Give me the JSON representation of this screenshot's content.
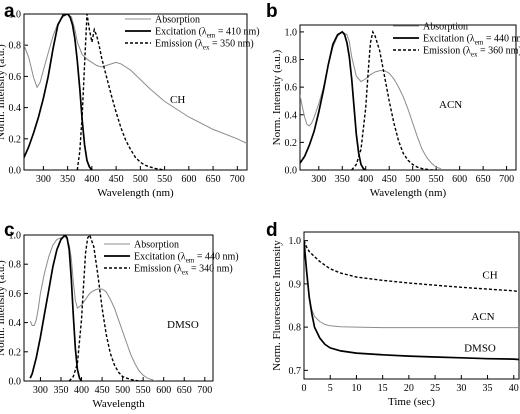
{
  "chart_data": [
    {
      "type": "line",
      "panel": "a",
      "xlabel": "Wavelength (nm)",
      "ylabel": "Norm. Intensity (a.u.)",
      "xlim": [
        260,
        720
      ],
      "ylim": [
        0,
        1.0
      ],
      "xticks": [
        300,
        350,
        400,
        450,
        500,
        550,
        600,
        650,
        700
      ],
      "yticks": [
        0.0,
        0.2,
        0.4,
        0.6,
        0.8,
        1.0
      ],
      "legend_position": "top-right",
      "annotation": "CH",
      "series": [
        {
          "name": "Absorption",
          "color": "#8c8c8c",
          "dash": "solid",
          "x": [
            260,
            270,
            280,
            287,
            293,
            300,
            310,
            320,
            330,
            340,
            350,
            358,
            365,
            370,
            380,
            390,
            400,
            410,
            420,
            430,
            440,
            450,
            460,
            480,
            500,
            520,
            550,
            600,
            650,
            700,
            720
          ],
          "y": [
            0.8,
            0.72,
            0.59,
            0.53,
            0.56,
            0.64,
            0.75,
            0.86,
            0.94,
            0.98,
            1.0,
            0.98,
            0.9,
            0.82,
            0.74,
            0.71,
            0.69,
            0.67,
            0.66,
            0.67,
            0.68,
            0.69,
            0.68,
            0.64,
            0.58,
            0.52,
            0.44,
            0.34,
            0.26,
            0.2,
            0.17
          ]
        },
        {
          "name": "Excitation",
          "color": "#000000",
          "dash": "solid",
          "x": [
            260,
            270,
            280,
            290,
            300,
            310,
            320,
            330,
            340,
            350,
            355,
            360,
            365,
            370,
            375,
            380,
            385,
            390,
            395,
            400
          ],
          "y": [
            0.08,
            0.15,
            0.24,
            0.34,
            0.46,
            0.6,
            0.78,
            0.93,
            0.99,
            1.0,
            0.98,
            0.93,
            0.84,
            0.7,
            0.52,
            0.32,
            0.16,
            0.06,
            0.02,
            0.0
          ]
        },
        {
          "name": "Emission",
          "color": "#000000",
          "dash": "dashed",
          "x": [
            370,
            375,
            380,
            385,
            390,
            395,
            400,
            405,
            410,
            415,
            420,
            430,
            440,
            450,
            460,
            470,
            480,
            490,
            500,
            510,
            520,
            530,
            540,
            550
          ],
          "y": [
            0.0,
            0.12,
            0.35,
            0.68,
            1.0,
            0.9,
            0.82,
            0.9,
            0.86,
            0.8,
            0.72,
            0.6,
            0.48,
            0.37,
            0.27,
            0.19,
            0.13,
            0.08,
            0.05,
            0.03,
            0.02,
            0.01,
            0.005,
            0.0
          ]
        }
      ]
    },
    {
      "type": "line",
      "panel": "b",
      "xlabel": "Wavelength (nm)",
      "ylabel": "Norm. Intensity (a.u.)",
      "xlim": [
        260,
        720
      ],
      "ylim": [
        0,
        1.05
      ],
      "xticks": [
        300,
        350,
        400,
        450,
        500,
        550,
        600,
        650,
        700
      ],
      "yticks": [
        0.0,
        0.2,
        0.4,
        0.6,
        0.8,
        1.0
      ],
      "legend_position": "top-right",
      "annotation": "ACN",
      "series": [
        {
          "name": "Absorption",
          "color": "#8c8c8c",
          "dash": "solid",
          "x": [
            260,
            265,
            270,
            275,
            280,
            285,
            290,
            300,
            310,
            320,
            330,
            340,
            350,
            360,
            365,
            370,
            380,
            390,
            400,
            410,
            420,
            430,
            440,
            450,
            460,
            470,
            480,
            490,
            500,
            510,
            520,
            530,
            540,
            550,
            560
          ],
          "y": [
            0.54,
            0.46,
            0.38,
            0.33,
            0.32,
            0.34,
            0.38,
            0.48,
            0.6,
            0.76,
            0.89,
            0.97,
            1.0,
            0.98,
            0.93,
            0.82,
            0.68,
            0.64,
            0.66,
            0.69,
            0.71,
            0.72,
            0.72,
            0.7,
            0.66,
            0.6,
            0.53,
            0.44,
            0.34,
            0.24,
            0.15,
            0.09,
            0.05,
            0.02,
            0.01
          ]
        },
        {
          "name": "Excitation",
          "color": "#000000",
          "dash": "solid",
          "x": [
            260,
            270,
            280,
            290,
            300,
            310,
            320,
            330,
            340,
            350,
            355,
            360,
            365,
            370,
            375,
            380,
            385,
            390,
            395,
            400
          ],
          "y": [
            0.05,
            0.1,
            0.18,
            0.28,
            0.42,
            0.58,
            0.76,
            0.91,
            0.98,
            1.0,
            0.98,
            0.92,
            0.82,
            0.66,
            0.46,
            0.26,
            0.12,
            0.04,
            0.01,
            0.0
          ]
        },
        {
          "name": "Emission",
          "color": "#000000",
          "dash": "dashed",
          "x": [
            370,
            380,
            390,
            400,
            405,
            410,
            415,
            420,
            430,
            440,
            450,
            460,
            470,
            480,
            490,
            500,
            510,
            520,
            530,
            540,
            550
          ],
          "y": [
            0.0,
            0.04,
            0.15,
            0.45,
            0.7,
            0.92,
            1.0,
            0.97,
            0.86,
            0.68,
            0.5,
            0.34,
            0.21,
            0.12,
            0.07,
            0.04,
            0.02,
            0.01,
            0.005,
            0.0,
            0.0
          ]
        }
      ]
    },
    {
      "type": "line",
      "panel": "c",
      "xlabel": "Wavelength",
      "ylabel": "Norm. Intensity (a.u.)",
      "xlim": [
        260,
        720
      ],
      "ylim": [
        0,
        1.0
      ],
      "xticks": [
        300,
        350,
        400,
        450,
        500,
        550,
        600,
        650,
        700
      ],
      "yticks": [
        0.0,
        0.2,
        0.4,
        0.6,
        0.8,
        1.0
      ],
      "legend_position": "top-right",
      "annotation": "DMSO",
      "series": [
        {
          "name": "Absorption",
          "color": "#8c8c8c",
          "dash": "solid",
          "x": [
            275,
            280,
            285,
            290,
            295,
            300,
            310,
            320,
            330,
            340,
            350,
            360,
            365,
            370,
            375,
            380,
            385,
            390,
            400,
            410,
            420,
            430,
            440,
            450,
            460,
            470,
            480,
            490,
            500,
            510,
            520,
            530,
            540,
            550,
            560,
            570,
            580
          ],
          "y": [
            0.41,
            0.38,
            0.38,
            0.42,
            0.5,
            0.6,
            0.74,
            0.85,
            0.93,
            0.97,
            0.98,
            0.99,
            0.97,
            0.93,
            0.84,
            0.68,
            0.55,
            0.5,
            0.52,
            0.56,
            0.6,
            0.62,
            0.63,
            0.63,
            0.61,
            0.56,
            0.5,
            0.42,
            0.34,
            0.26,
            0.18,
            0.12,
            0.07,
            0.04,
            0.02,
            0.01,
            0.0
          ]
        },
        {
          "name": "Excitation",
          "color": "#000000",
          "dash": "solid",
          "x": [
            275,
            280,
            290,
            300,
            310,
            320,
            330,
            340,
            350,
            360,
            365,
            370,
            375,
            380,
            385,
            390,
            395,
            400
          ],
          "y": [
            0.02,
            0.05,
            0.16,
            0.3,
            0.46,
            0.62,
            0.78,
            0.9,
            0.97,
            1.0,
            0.98,
            0.9,
            0.7,
            0.45,
            0.22,
            0.08,
            0.02,
            0.0
          ]
        },
        {
          "name": "Emission",
          "color": "#000000",
          "dash": "dashed",
          "x": [
            370,
            380,
            390,
            400,
            405,
            410,
            415,
            420,
            430,
            440,
            450,
            460,
            470,
            480,
            490,
            500,
            510,
            520,
            530,
            540,
            550
          ],
          "y": [
            0.0,
            0.03,
            0.12,
            0.42,
            0.66,
            0.88,
            0.98,
            1.0,
            0.92,
            0.72,
            0.5,
            0.32,
            0.19,
            0.11,
            0.06,
            0.03,
            0.02,
            0.01,
            0.005,
            0.0,
            0.0
          ]
        }
      ]
    },
    {
      "type": "line",
      "panel": "d",
      "xlabel": "Time (sec)",
      "ylabel": "Norm. Fluorescence Intensity",
      "xlim": [
        0,
        41
      ],
      "ylim": [
        0.68,
        1.02
      ],
      "xticks": [
        0,
        5,
        10,
        15,
        20,
        25,
        30,
        35,
        40
      ],
      "yticks": [
        0.7,
        0.8,
        0.9,
        1.0
      ],
      "series": [
        {
          "name": "CH",
          "color": "#000000",
          "dash": "dashed",
          "x": [
            0,
            0.5,
            1,
            2,
            3,
            4,
            5,
            7,
            10,
            15,
            20,
            25,
            30,
            35,
            40,
            41
          ],
          "y": [
            1.0,
            0.985,
            0.975,
            0.963,
            0.952,
            0.943,
            0.935,
            0.925,
            0.916,
            0.908,
            0.902,
            0.897,
            0.892,
            0.888,
            0.884,
            0.882
          ]
        },
        {
          "name": "ACN",
          "color": "#8c8c8c",
          "dash": "solid",
          "x": [
            0,
            0.3,
            0.7,
            1,
            1.5,
            2,
            3,
            4,
            5,
            7,
            10,
            15,
            20,
            25,
            30,
            35,
            40,
            41
          ],
          "y": [
            1.0,
            0.95,
            0.9,
            0.87,
            0.84,
            0.825,
            0.813,
            0.806,
            0.803,
            0.801,
            0.8,
            0.799,
            0.799,
            0.799,
            0.799,
            0.799,
            0.799,
            0.799
          ]
        },
        {
          "name": "DMSO",
          "color": "#000000",
          "dash": "solid",
          "x": [
            0,
            0.5,
            1,
            1.5,
            2,
            3,
            4,
            5,
            7,
            10,
            15,
            20,
            25,
            30,
            35,
            40,
            41
          ],
          "y": [
            1.0,
            0.93,
            0.87,
            0.83,
            0.8,
            0.775,
            0.76,
            0.752,
            0.745,
            0.74,
            0.736,
            0.733,
            0.731,
            0.729,
            0.727,
            0.726,
            0.725
          ]
        }
      ]
    }
  ],
  "panels": {
    "a": {
      "label": "a",
      "legend": [
        {
          "text": "Absorption",
          "sub": "",
          "tail": ""
        },
        {
          "text": "Excitation (λ",
          "sub": "em",
          "tail": " = 410 nm)"
        },
        {
          "text": "Emission (λ",
          "sub": "ex",
          "tail": " = 350 nm)"
        }
      ]
    },
    "b": {
      "label": "b",
      "legend": [
        {
          "text": "Absorption",
          "sub": "",
          "tail": ""
        },
        {
          "text": "Excitation (λ",
          "sub": "em",
          "tail": " = 440 nm)"
        },
        {
          "text": "Emission (λ",
          "sub": "ex",
          "tail": " = 360 nm)"
        }
      ]
    },
    "c": {
      "label": "c",
      "legend": [
        {
          "text": "Absorption",
          "sub": "",
          "tail": ""
        },
        {
          "text": "Excitation (λ",
          "sub": "em",
          "tail": " = 440 nm)"
        },
        {
          "text": "Emission (λ",
          "sub": "ex",
          "tail": " = 340 nm)"
        }
      ]
    },
    "d": {
      "label": "d"
    }
  }
}
